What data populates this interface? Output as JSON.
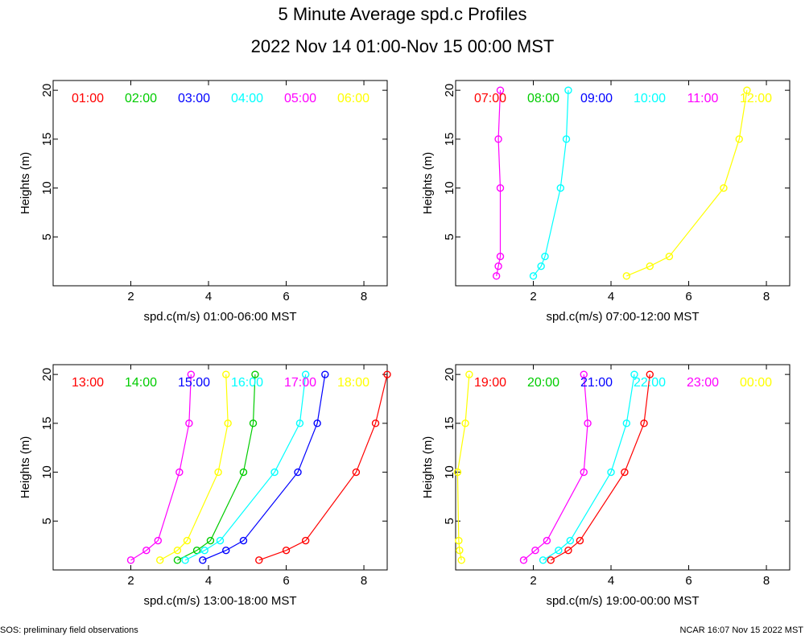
{
  "title": "5 Minute Average spd.c Profiles",
  "subtitle": "2022 Nov 14 01:00-Nov 15 00:00 MST",
  "footer_left": "SOS: preliminary field observations",
  "footer_right": "NCAR 16:07 Nov 15 2022 MST",
  "colors": [
    "#ff0000",
    "#00cc00",
    "#0000ff",
    "#00ffff",
    "#ff00ff",
    "#ffff00"
  ],
  "chart_data": [
    {
      "type": "line",
      "xlabel": "spd.c(m/s) 01:00-06:00 MST",
      "ylabel": "Heights (m)",
      "xlim": [
        0,
        8.6
      ],
      "ylim": [
        0,
        21
      ],
      "xticks": [
        2,
        4,
        6,
        8
      ],
      "yticks": [
        5,
        10,
        15,
        20
      ],
      "legend": [
        "01:00",
        "02:00",
        "03:00",
        "04:00",
        "05:00",
        "06:00"
      ],
      "series": []
    },
    {
      "type": "line",
      "xlabel": "spd.c(m/s) 07:00-12:00 MST",
      "ylabel": "Heights (m)",
      "xlim": [
        0,
        8.6
      ],
      "ylim": [
        0,
        21
      ],
      "xticks": [
        2,
        4,
        6,
        8
      ],
      "yticks": [
        5,
        10,
        15,
        20
      ],
      "legend": [
        "07:00",
        "08:00",
        "09:00",
        "10:00",
        "11:00",
        "12:00"
      ],
      "series": [
        {
          "name": "10:00",
          "color_index": 3,
          "x": [
            2.0,
            2.2,
            2.3,
            2.7,
            2.85,
            2.9
          ],
          "y": [
            1,
            2,
            3,
            10,
            15,
            20
          ]
        },
        {
          "name": "11:00",
          "color_index": 4,
          "x": [
            1.05,
            1.1,
            1.15,
            1.15,
            1.1,
            1.15
          ],
          "y": [
            1,
            2,
            3,
            10,
            15,
            20
          ]
        },
        {
          "name": "12:00",
          "color_index": 5,
          "x": [
            4.4,
            5.0,
            5.5,
            6.9,
            7.3,
            7.5
          ],
          "y": [
            1,
            2,
            3,
            10,
            15,
            20
          ]
        }
      ]
    },
    {
      "type": "line",
      "xlabel": "spd.c(m/s) 13:00-18:00 MST",
      "ylabel": "Heights (m)",
      "xlim": [
        0,
        8.6
      ],
      "ylim": [
        0,
        21
      ],
      "xticks": [
        2,
        4,
        6,
        8
      ],
      "yticks": [
        5,
        10,
        15,
        20
      ],
      "legend": [
        "13:00",
        "14:00",
        "15:00",
        "16:00",
        "17:00",
        "18:00"
      ],
      "series": [
        {
          "name": "13:00",
          "color_index": 0,
          "x": [
            5.3,
            6.0,
            6.5,
            7.8,
            8.3,
            8.6
          ],
          "y": [
            1,
            2,
            3,
            10,
            15,
            20
          ]
        },
        {
          "name": "14:00",
          "color_index": 1,
          "x": [
            3.2,
            3.7,
            4.05,
            4.9,
            5.15,
            5.2
          ],
          "y": [
            1,
            2,
            3,
            10,
            15,
            20
          ]
        },
        {
          "name": "15:00",
          "color_index": 2,
          "x": [
            3.85,
            4.45,
            4.9,
            6.3,
            6.8,
            7.0
          ],
          "y": [
            1,
            2,
            3,
            10,
            15,
            20
          ]
        },
        {
          "name": "16:00",
          "color_index": 3,
          "x": [
            3.4,
            3.9,
            4.3,
            5.7,
            6.35,
            6.5
          ],
          "y": [
            1,
            2,
            3,
            10,
            15,
            20
          ]
        },
        {
          "name": "17:00",
          "color_index": 4,
          "x": [
            2.0,
            2.4,
            2.7,
            3.25,
            3.5,
            3.55
          ],
          "y": [
            1,
            2,
            3,
            10,
            15,
            20
          ]
        },
        {
          "name": "18:00",
          "color_index": 5,
          "x": [
            2.75,
            3.2,
            3.45,
            4.25,
            4.5,
            4.45
          ],
          "y": [
            1,
            2,
            3,
            10,
            15,
            20
          ]
        }
      ]
    },
    {
      "type": "line",
      "xlabel": "spd.c(m/s) 19:00-00:00 MST",
      "ylabel": "Heights (m)",
      "xlim": [
        0,
        8.6
      ],
      "ylim": [
        0,
        21
      ],
      "xticks": [
        2,
        4,
        6,
        8
      ],
      "yticks": [
        5,
        10,
        15,
        20
      ],
      "legend": [
        "19:00",
        "20:00",
        "21:00",
        "22:00",
        "23:00",
        "00:00"
      ],
      "series": [
        {
          "name": "22:00",
          "color_index": 3,
          "x": [
            2.25,
            2.65,
            2.95,
            4.0,
            4.4,
            4.6
          ],
          "y": [
            1,
            2,
            3,
            10,
            15,
            20
          ]
        },
        {
          "name": "19:00",
          "color_index": 0,
          "x": [
            2.45,
            2.9,
            3.2,
            4.35,
            4.85,
            5.0
          ],
          "y": [
            1,
            2,
            3,
            10,
            15,
            20
          ]
        },
        {
          "name": "23:00",
          "color_index": 4,
          "x": [
            1.75,
            2.05,
            2.35,
            3.3,
            3.4,
            3.3
          ],
          "y": [
            1,
            2,
            3,
            10,
            15,
            20
          ]
        },
        {
          "name": "00:00",
          "color_index": 5,
          "x": [
            0.15,
            0.1,
            0.08,
            0.05,
            0.25,
            0.35
          ],
          "y": [
            1,
            2,
            3,
            10,
            15,
            20
          ]
        }
      ]
    }
  ]
}
